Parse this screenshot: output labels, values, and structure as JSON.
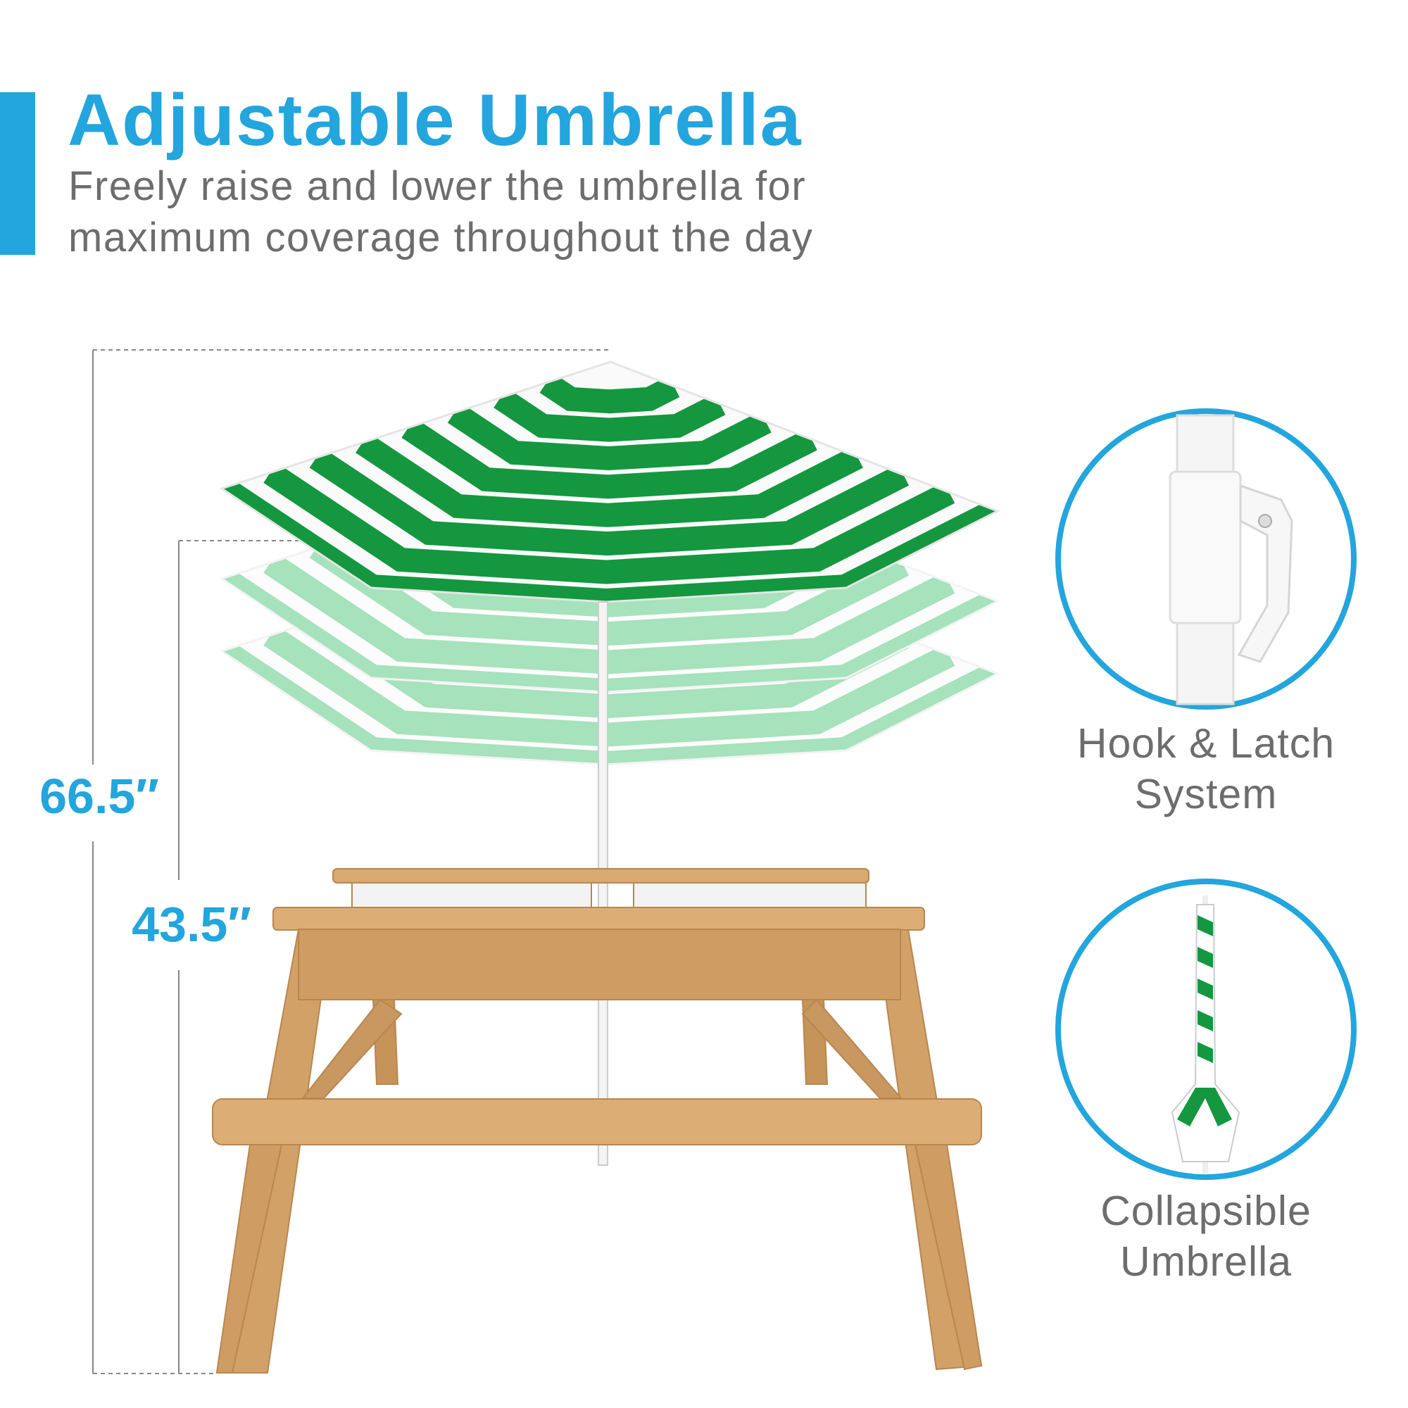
{
  "header": {
    "title": "Adjustable Umbrella",
    "subtitle": "Freely raise and lower the umbrella for maximum coverage throughout the day"
  },
  "dimensions": {
    "total_height": "66.5″",
    "lowered_height": "43.5″"
  },
  "features": [
    {
      "label_line1": "Hook & Latch",
      "label_line2": "System",
      "icon": "hook-latch-closeup"
    },
    {
      "label_line1": "Collapsible",
      "label_line2": "Umbrella",
      "icon": "collapsed-umbrella"
    }
  ],
  "colors": {
    "accent": "#23a5dd",
    "umbrella_green": "#14973f",
    "wood": "#d4a56c",
    "text_gray": "#6d6d6d"
  }
}
